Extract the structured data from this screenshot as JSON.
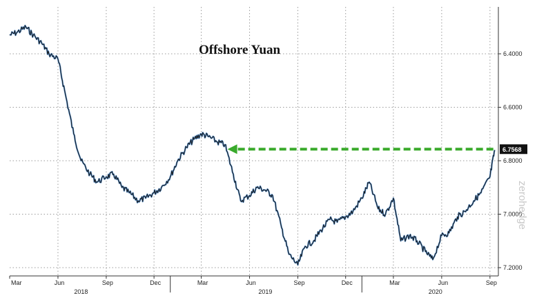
{
  "chart_data": {
    "type": "line",
    "title": "Offshore Yuan",
    "x_ticks": [
      "Mar",
      "Jun",
      "Sep",
      "Dec",
      "Mar",
      "Jun",
      "Sep",
      "Dec",
      "Mar",
      "Jun",
      "Sep"
    ],
    "x_year_labels": [
      "2018",
      "2019",
      "2020"
    ],
    "y_axis_inverted": true,
    "y_ticks": [
      "6.4000",
      "6.6000",
      "6.8000",
      "7.0000",
      "7.2000"
    ],
    "ylim": [
      6.25,
      7.23
    ],
    "grid": true,
    "last_value_label": "6.7568",
    "watermark": "zerohedge",
    "annotation": "green dashed arrow at the 6.7568 level pointing left from the latest value to the April 2019 level",
    "series": [
      {
        "x": [
          "2018-03-01",
          "2018-03-15",
          "2018-04-01",
          "2018-04-15",
          "2018-05-01",
          "2018-05-15",
          "2018-06-01",
          "2018-06-15",
          "2018-07-01",
          "2018-07-15",
          "2018-08-01",
          "2018-08-15",
          "2018-09-01",
          "2018-09-15",
          "2018-10-01",
          "2018-10-15",
          "2018-11-01",
          "2018-11-15",
          "2018-12-01",
          "2018-12-15",
          "2019-01-01",
          "2019-01-15",
          "2019-02-01",
          "2019-02-15",
          "2019-03-01",
          "2019-03-15",
          "2019-04-01",
          "2019-04-15",
          "2019-05-01",
          "2019-05-15",
          "2019-06-01",
          "2019-06-15",
          "2019-07-01",
          "2019-07-15",
          "2019-08-01",
          "2019-08-15",
          "2019-09-01",
          "2019-09-15",
          "2019-10-01",
          "2019-10-15",
          "2019-11-01",
          "2019-11-15",
          "2019-12-01",
          "2019-12-15",
          "2020-01-01",
          "2020-01-15",
          "2020-02-01",
          "2020-02-15",
          "2020-03-01",
          "2020-03-15",
          "2020-04-01",
          "2020-04-15",
          "2020-05-01",
          "2020-05-15",
          "2020-06-01",
          "2020-06-15",
          "2020-07-01",
          "2020-07-15",
          "2020-08-01",
          "2020-08-15",
          "2020-09-01",
          "2020-09-10"
        ],
        "values": [
          6.33,
          6.32,
          6.3,
          6.33,
          6.36,
          6.4,
          6.42,
          6.55,
          6.7,
          6.8,
          6.85,
          6.88,
          6.86,
          6.85,
          6.9,
          6.92,
          6.95,
          6.94,
          6.92,
          6.9,
          6.86,
          6.8,
          6.75,
          6.72,
          6.7,
          6.71,
          6.73,
          6.74,
          6.85,
          6.95,
          6.93,
          6.9,
          6.91,
          6.93,
          7.05,
          7.15,
          7.19,
          7.12,
          7.1,
          7.06,
          7.02,
          7.03,
          7.01,
          6.99,
          6.94,
          6.88,
          6.98,
          7.0,
          6.94,
          7.1,
          7.08,
          7.1,
          7.14,
          7.17,
          7.08,
          7.07,
          7.01,
          6.99,
          6.95,
          6.92,
          6.86,
          6.76
        ]
      }
    ]
  }
}
